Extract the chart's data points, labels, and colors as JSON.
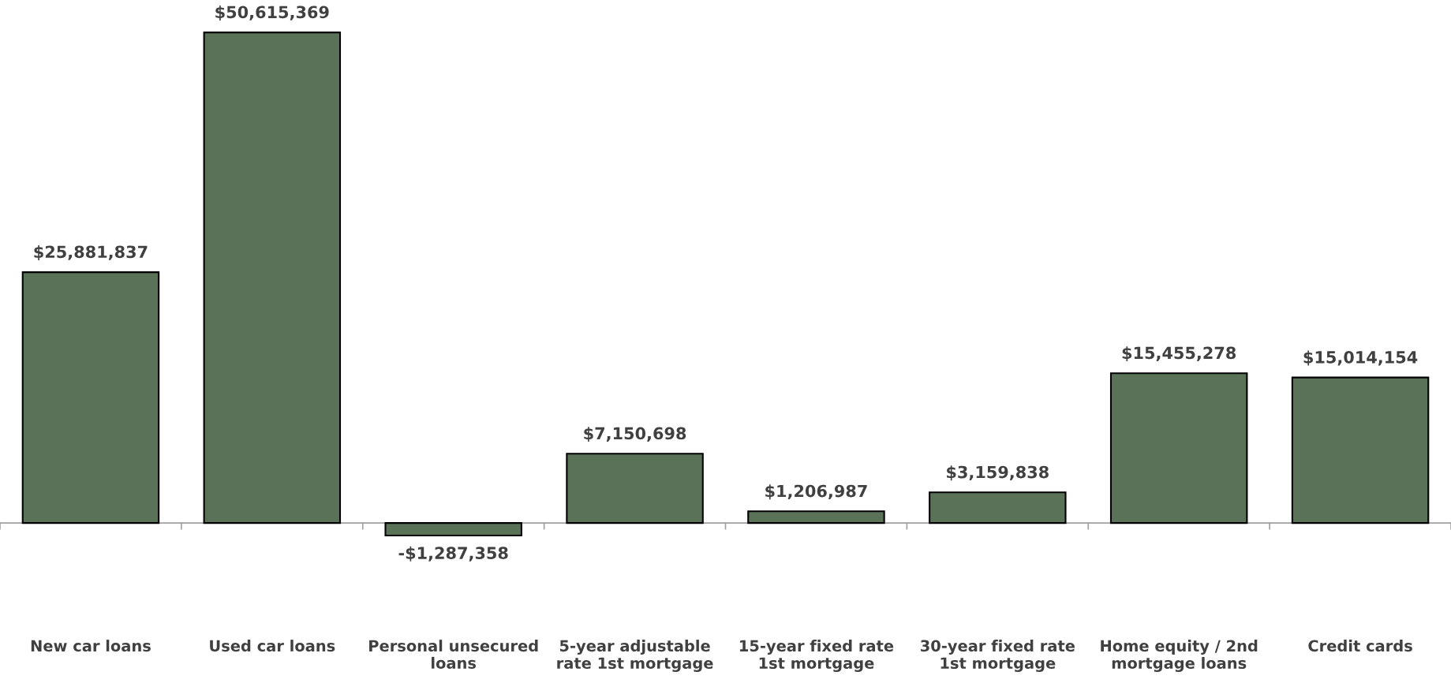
{
  "chart_data": {
    "type": "bar",
    "categories": [
      "New car loans",
      "Used car loans",
      "Personal unsecured\nloans",
      "5-year adjustable\nrate 1st mortgage",
      "15-year fixed rate\n1st mortgage",
      "30-year fixed rate\n1st mortgage",
      "Home equity / 2nd\nmortgage loans",
      "Credit cards"
    ],
    "values": [
      25881837,
      50615369,
      -1287358,
      7150698,
      1206987,
      3159838,
      15455278,
      15014154
    ],
    "value_labels": [
      "$25,881,837",
      "$50,615,369",
      "-$1,287,358",
      "$7,150,698",
      "$1,206,987",
      "$3,159,838",
      "$15,455,278",
      "$15,014,154"
    ],
    "color": "#5a7358",
    "grid": false,
    "legend": false
  }
}
